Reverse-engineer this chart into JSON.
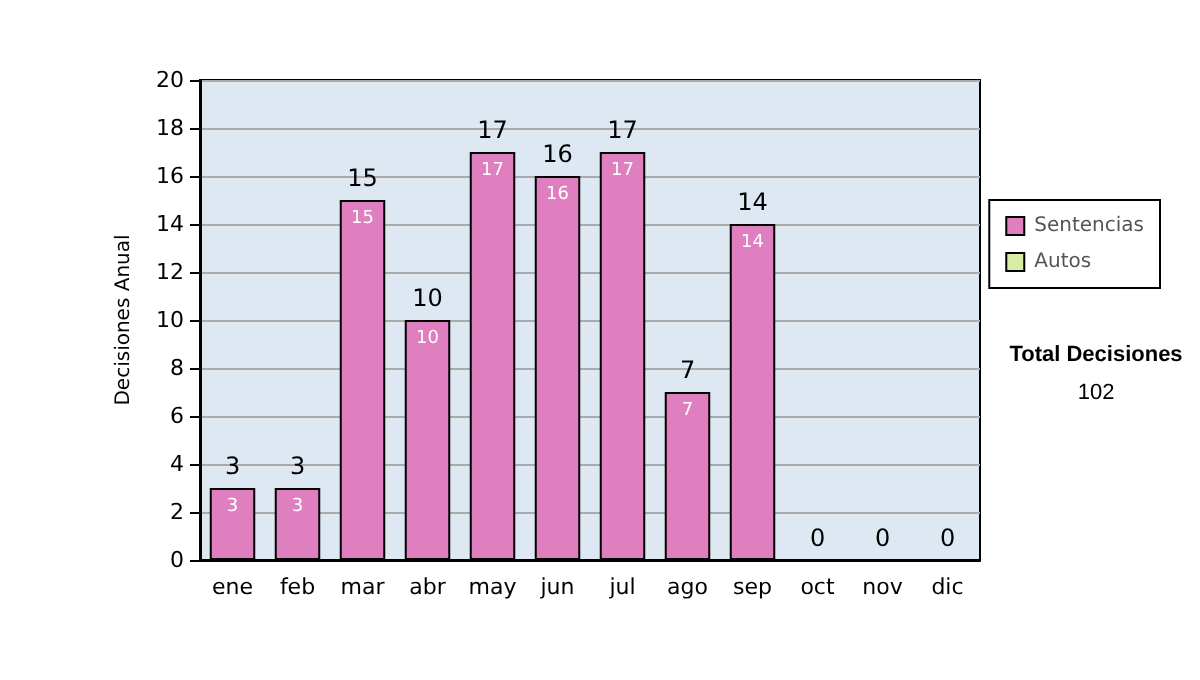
{
  "chart_data": {
    "type": "bar",
    "stacked": true,
    "ylabel": "Decisiones Anual",
    "categories": [
      "ene",
      "feb",
      "mar",
      "abr",
      "may",
      "jun",
      "jul",
      "ago",
      "sep",
      "oct",
      "nov",
      "dic"
    ],
    "series": [
      {
        "name": "Sentencias",
        "color": "#e07fbf",
        "values": [
          3,
          3,
          15,
          10,
          17,
          16,
          17,
          7,
          14,
          0,
          0,
          0
        ],
        "value_labels": [
          "3",
          "3",
          "15",
          "10",
          "17",
          "16",
          "17",
          "7",
          "14",
          null,
          null,
          null
        ]
      },
      {
        "name": "Autos",
        "color": "#d8eca4",
        "values": [
          0,
          0,
          0,
          0,
          0,
          0,
          0,
          0,
          0,
          0,
          0,
          0
        ]
      }
    ],
    "totals": [
      "3",
      "3",
      "15",
      "10",
      "17",
      "16",
      "17",
      "7",
      "14",
      "0",
      "0",
      "0"
    ],
    "ylim": [
      0,
      20
    ],
    "yticks": [
      0,
      2,
      4,
      6,
      8,
      10,
      12,
      14,
      16,
      18,
      20
    ],
    "grid": "y",
    "legend": "right",
    "annotations": [
      "Total Decisiones",
      "102"
    ]
  }
}
